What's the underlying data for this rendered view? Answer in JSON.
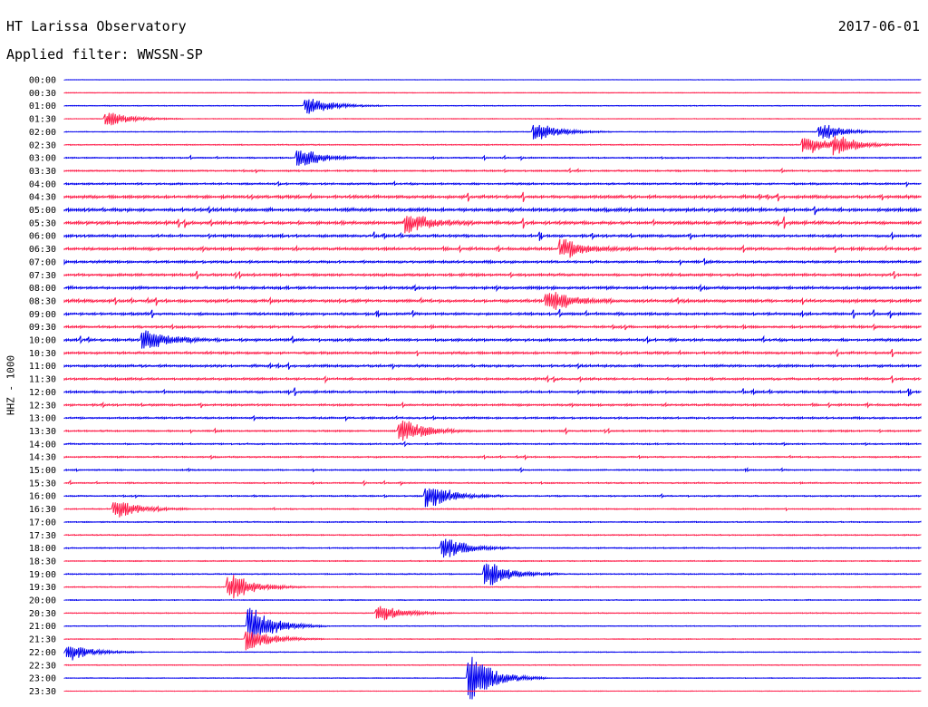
{
  "header": {
    "station_title": "HT Larissa Observatory",
    "date": "2017-06-01",
    "filter_text": "Applied filter: WWSSN-SP"
  },
  "chart_data": {
    "type": "line",
    "title": "HT Larissa Observatory",
    "ylabel": "HHZ - 1000",
    "trace_colors": [
      "#0000ee",
      "#ff1f4b"
    ],
    "row_labels": [
      "00:00",
      "00:30",
      "01:00",
      "01:30",
      "02:00",
      "02:30",
      "03:00",
      "03:30",
      "04:00",
      "04:30",
      "05:00",
      "05:30",
      "06:00",
      "06:30",
      "07:00",
      "07:30",
      "08:00",
      "08:30",
      "09:00",
      "09:30",
      "10:00",
      "10:30",
      "11:00",
      "11:30",
      "12:00",
      "12:30",
      "13:00",
      "13:30",
      "14:00",
      "14:30",
      "15:00",
      "15:30",
      "16:00",
      "16:30",
      "17:00",
      "17:30",
      "18:00",
      "18:30",
      "19:00",
      "19:30",
      "20:00",
      "20:30",
      "21:00",
      "21:30",
      "22:00",
      "22:30",
      "23:00",
      "23:30"
    ],
    "noise_level": [
      0.15,
      0.2,
      0.3,
      0.25,
      0.3,
      0.45,
      0.6,
      0.7,
      0.9,
      1.5,
      1.7,
      1.6,
      1.3,
      1.4,
      1.2,
      1.3,
      1.4,
      1.5,
      1.3,
      1.2,
      1.3,
      1.2,
      1.2,
      1.1,
      1.1,
      1.0,
      0.9,
      0.8,
      0.7,
      0.7,
      0.6,
      0.6,
      0.6,
      0.55,
      0.5,
      0.5,
      0.5,
      0.45,
      0.5,
      0.45,
      0.4,
      0.4,
      0.3,
      0.3,
      0.3,
      0.3,
      0.25,
      0.2
    ],
    "events": [
      {
        "row": 2,
        "minute": 8.7,
        "amplitude": 9
      },
      {
        "row": 3,
        "minute": 1.7,
        "amplitude": 7
      },
      {
        "row": 4,
        "minute": 16.7,
        "amplitude": 9
      },
      {
        "row": 4,
        "minute": 26.7,
        "amplitude": 8
      },
      {
        "row": 5,
        "minute": 26.1,
        "amplitude": 10
      },
      {
        "row": 5,
        "minute": 27.2,
        "amplitude": 8
      },
      {
        "row": 6,
        "minute": 8.4,
        "amplitude": 10
      },
      {
        "row": 11,
        "minute": 12.2,
        "amplitude": 10
      },
      {
        "row": 13,
        "minute": 17.6,
        "amplitude": 10
      },
      {
        "row": 17,
        "minute": 17.1,
        "amplitude": 10
      },
      {
        "row": 20,
        "minute": 3.0,
        "amplitude": 10
      },
      {
        "row": 27,
        "minute": 12.0,
        "amplitude": 12
      },
      {
        "row": 32,
        "minute": 12.9,
        "amplitude": 12
      },
      {
        "row": 33,
        "minute": 2.0,
        "amplitude": 9
      },
      {
        "row": 36,
        "minute": 13.5,
        "amplitude": 11
      },
      {
        "row": 38,
        "minute": 15.0,
        "amplitude": 12
      },
      {
        "row": 39,
        "minute": 6.0,
        "amplitude": 14
      },
      {
        "row": 41,
        "minute": 11.2,
        "amplitude": 9
      },
      {
        "row": 42,
        "minute": 6.7,
        "amplitude": 20
      },
      {
        "row": 43,
        "minute": 6.6,
        "amplitude": 12
      },
      {
        "row": 44,
        "minute": 0.3,
        "amplitude": 9
      },
      {
        "row": 46,
        "minute": 14.4,
        "amplitude": 24
      }
    ],
    "grid": false
  }
}
